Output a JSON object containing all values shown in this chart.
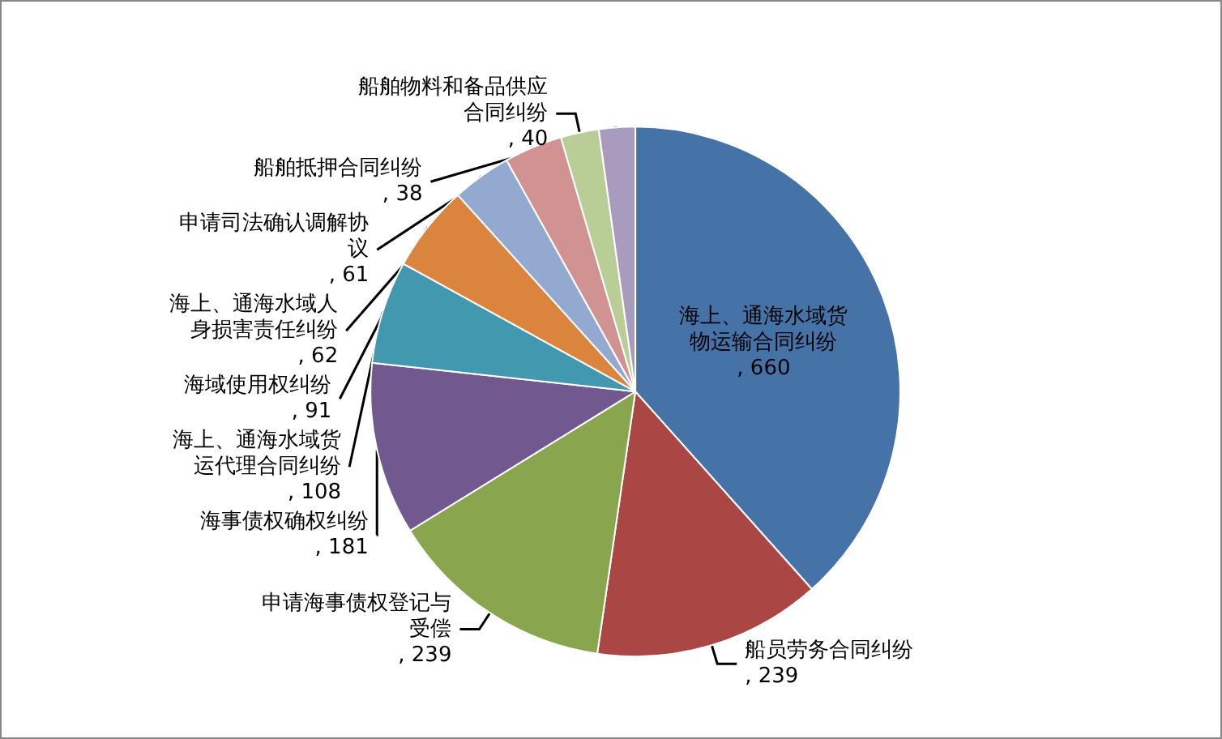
{
  "chart_data": {
    "type": "pie",
    "categories": [
      "海上、通海水域货物运输合同纠纷",
      "船员劳务合同纠纷",
      "申请海事债权登记与受偿",
      "海事债权确权纠纷",
      "海上、通海水域货运代理合同纠纷",
      "海域使用权纠纷",
      "海上、通海水域人身损害责任纠纷",
      "申请司法确认调解协议",
      "船舶物料和备品供应合同纠纷",
      "船舶抵押合同纠纷"
    ],
    "values": [
      660,
      239,
      239,
      181,
      108,
      91,
      62,
      61,
      40,
      38
    ],
    "colors": [
      "#4572a7",
      "#aa4643",
      "#89a54e",
      "#71588f",
      "#4198af",
      "#db843d",
      "#93a9cf",
      "#d19392",
      "#b9cd96",
      "#a99bbd"
    ],
    "value_labels": [
      ", 660",
      ", 239",
      ", 239",
      ", 181",
      ", 108",
      ", 91",
      ", 62",
      ", 61",
      ", 40",
      ", 38"
    ],
    "legend": false
  }
}
